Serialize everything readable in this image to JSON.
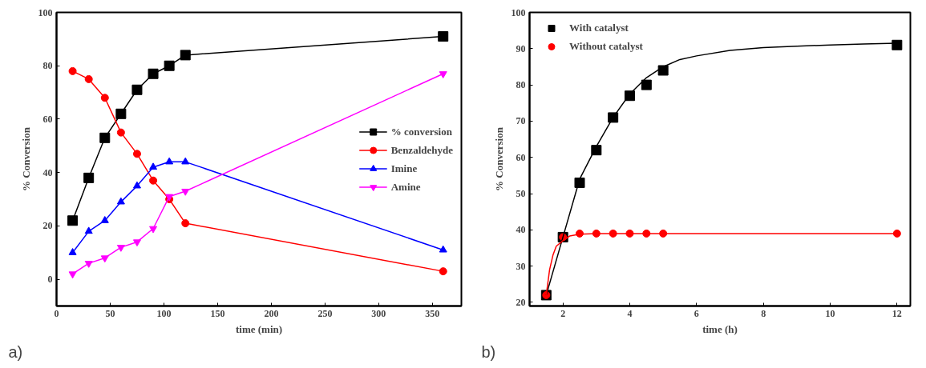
{
  "chart_data": [
    {
      "type": "line",
      "xlabel": "time (min)",
      "ylabel": "% Conversion",
      "annotations": [
        "a)"
      ],
      "xlim": [
        0,
        377
      ],
      "ylim": [
        -10,
        100
      ],
      "xticks": [
        0,
        50,
        100,
        150,
        200,
        250,
        300,
        350
      ],
      "yticks": [
        0,
        20,
        40,
        60,
        80,
        100
      ],
      "grid": false,
      "legend": "right",
      "line_style": "solid",
      "x": [
        15,
        30,
        45,
        60,
        75,
        90,
        105,
        120,
        360
      ],
      "series": [
        {
          "name": "% conversion",
          "color": "#000000",
          "marker": "square",
          "values": [
            22,
            38,
            53,
            62,
            71,
            77,
            80,
            84,
            91
          ]
        },
        {
          "name": "Benzaldehyde",
          "color": "#ff0000",
          "marker": "circle",
          "values": [
            78,
            75,
            68,
            55,
            47,
            37,
            30,
            21,
            3
          ]
        },
        {
          "name": "Imine",
          "color": "#0000ff",
          "marker": "triangle",
          "values": [
            10,
            18,
            22,
            29,
            35,
            42,
            44,
            44,
            11
          ]
        },
        {
          "name": "Amine",
          "color": "#ff00ff",
          "marker": "triangle_down",
          "values": [
            2,
            6,
            8,
            12,
            14,
            19,
            31,
            33,
            77
          ]
        }
      ]
    },
    {
      "type": "scatter",
      "xlabel": "time (h)",
      "ylabel": "% Conversion",
      "annotations": [
        "b)"
      ],
      "xlim": [
        1,
        12.4
      ],
      "ylim": [
        19,
        100
      ],
      "xticks": [
        2,
        4,
        6,
        8,
        10,
        12
      ],
      "yticks": [
        20,
        30,
        40,
        50,
        60,
        70,
        80,
        90,
        100
      ],
      "grid": false,
      "legend": "top left",
      "x": [
        1.5,
        2,
        2.5,
        3,
        3.5,
        4,
        4.5,
        5,
        12
      ],
      "series": [
        {
          "name": "With catalyst",
          "color": "#000000",
          "marker": "square",
          "values": [
            22,
            38,
            53,
            62,
            71,
            77,
            80,
            84,
            91
          ]
        },
        {
          "name": "Without catalyst",
          "color": "#ff0000",
          "marker": "circle",
          "values": [
            22,
            38,
            39,
            39,
            39,
            39,
            39,
            39,
            39
          ]
        },
        {
          "type": "line",
          "color": "#000000",
          "marker": "none",
          "x": [
            1.5,
            1.75,
            2,
            2.5,
            3,
            3.5,
            4,
            4.5,
            5,
            5.5,
            6,
            7,
            8,
            9,
            10,
            11,
            12
          ],
          "values": [
            22,
            30,
            38,
            54,
            63,
            71,
            77.5,
            82,
            85,
            87,
            88,
            89.5,
            90.3,
            90.7,
            91,
            91.3,
            91.5
          ]
        },
        {
          "type": "line",
          "color": "#ff0000",
          "marker": "none",
          "x": [
            1.5,
            1.6,
            1.7,
            1.8,
            2,
            2.2,
            2.5,
            3,
            5,
            12
          ],
          "values": [
            22,
            29,
            33,
            35.5,
            37,
            38.3,
            38.8,
            39,
            39,
            39
          ]
        }
      ]
    }
  ]
}
